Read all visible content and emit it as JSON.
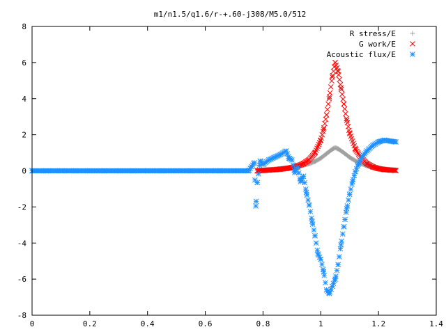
{
  "chart_data": {
    "type": "scatter",
    "title": "m1/n1.5/q1.6/r-+.60-j308/M5.0/512",
    "xlabel": "",
    "ylabel": "",
    "xlim": [
      0,
      1.4
    ],
    "ylim": [
      -8,
      8
    ],
    "xticks": [
      "0",
      "0.2",
      "0.4",
      "0.6",
      "0.8",
      "1",
      "1.2",
      "1.4"
    ],
    "yticks": [
      "-8",
      "-6",
      "-4",
      "-2",
      "0",
      "2",
      "4",
      "6",
      "8"
    ],
    "legend_position": "top-right",
    "grid": false,
    "series": [
      {
        "name": "R stress/E",
        "marker": "plus",
        "color": "#a0a0a0",
        "points": [
          [
            0.78,
            0.03
          ],
          [
            0.8,
            0.05
          ],
          [
            0.82,
            0.07
          ],
          [
            0.84,
            0.09
          ],
          [
            0.86,
            0.12
          ],
          [
            0.88,
            0.15
          ],
          [
            0.9,
            0.19
          ],
          [
            0.92,
            0.24
          ],
          [
            0.94,
            0.31
          ],
          [
            0.96,
            0.4
          ],
          [
            0.98,
            0.52
          ],
          [
            1.0,
            0.7
          ],
          [
            1.02,
            0.95
          ],
          [
            1.04,
            1.2
          ],
          [
            1.05,
            1.28
          ],
          [
            1.06,
            1.22
          ],
          [
            1.08,
            1.0
          ],
          [
            1.1,
            0.75
          ],
          [
            1.12,
            0.55
          ],
          [
            1.14,
            0.4
          ],
          [
            1.16,
            0.28
          ],
          [
            1.18,
            0.2
          ],
          [
            1.2,
            0.14
          ],
          [
            1.22,
            0.1
          ],
          [
            1.24,
            0.07
          ],
          [
            1.26,
            0.05
          ]
        ]
      },
      {
        "name": "G work/E",
        "marker": "cross",
        "color": "#ff0000",
        "points": [
          [
            0.78,
            0.0
          ],
          [
            0.8,
            0.02
          ],
          [
            0.82,
            0.04
          ],
          [
            0.84,
            0.06
          ],
          [
            0.86,
            0.09
          ],
          [
            0.88,
            0.13
          ],
          [
            0.9,
            0.18
          ],
          [
            0.92,
            0.27
          ],
          [
            0.94,
            0.4
          ],
          [
            0.96,
            0.62
          ],
          [
            0.98,
            1.0
          ],
          [
            1.0,
            1.7
          ],
          [
            1.01,
            2.3
          ],
          [
            1.02,
            3.1
          ],
          [
            1.03,
            4.1
          ],
          [
            1.04,
            5.2
          ],
          [
            1.05,
            6.0
          ],
          [
            1.06,
            5.5
          ],
          [
            1.07,
            4.6
          ],
          [
            1.08,
            3.7
          ],
          [
            1.09,
            2.8
          ],
          [
            1.1,
            2.1
          ],
          [
            1.12,
            1.2
          ],
          [
            1.14,
            0.7
          ],
          [
            1.16,
            0.4
          ],
          [
            1.18,
            0.22
          ],
          [
            1.2,
            0.12
          ],
          [
            1.22,
            0.07
          ],
          [
            1.24,
            0.04
          ],
          [
            1.26,
            0.02
          ]
        ]
      },
      {
        "name": "Acoustic flux/E",
        "marker": "star",
        "color": "#1e90ff",
        "points": [
          [
            0.0,
            0.0
          ],
          [
            0.05,
            0.0
          ],
          [
            0.1,
            0.0
          ],
          [
            0.15,
            0.0
          ],
          [
            0.2,
            0.0
          ],
          [
            0.25,
            0.0
          ],
          [
            0.3,
            0.0
          ],
          [
            0.35,
            0.0
          ],
          [
            0.4,
            0.0
          ],
          [
            0.45,
            0.0
          ],
          [
            0.5,
            0.0
          ],
          [
            0.55,
            0.0
          ],
          [
            0.6,
            0.0
          ],
          [
            0.65,
            0.0
          ],
          [
            0.7,
            0.0
          ],
          [
            0.75,
            0.0
          ],
          [
            0.77,
            0.45
          ],
          [
            0.775,
            -1.95
          ],
          [
            0.78,
            -0.65
          ],
          [
            0.79,
            0.55
          ],
          [
            0.8,
            0.35
          ],
          [
            0.82,
            0.6
          ],
          [
            0.84,
            0.75
          ],
          [
            0.86,
            0.9
          ],
          [
            0.88,
            1.1
          ],
          [
            0.89,
            0.7
          ],
          [
            0.9,
            0.6
          ],
          [
            0.91,
            -0.1
          ],
          [
            0.92,
            0.2
          ],
          [
            0.93,
            -0.6
          ],
          [
            0.94,
            -0.3
          ],
          [
            0.95,
            -1.2
          ],
          [
            0.96,
            -1.9
          ],
          [
            0.97,
            -2.8
          ],
          [
            0.98,
            -3.6
          ],
          [
            0.99,
            -4.6
          ],
          [
            1.0,
            -4.9
          ],
          [
            1.01,
            -5.6
          ],
          [
            1.02,
            -6.6
          ],
          [
            1.03,
            -6.8
          ],
          [
            1.04,
            -6.4
          ],
          [
            1.05,
            -6.0
          ],
          [
            1.06,
            -5.2
          ],
          [
            1.07,
            -4.1
          ],
          [
            1.08,
            -3.1
          ],
          [
            1.09,
            -2.1
          ],
          [
            1.1,
            -1.3
          ],
          [
            1.11,
            -0.6
          ],
          [
            1.12,
            -0.05
          ],
          [
            1.13,
            0.35
          ],
          [
            1.14,
            0.7
          ],
          [
            1.16,
            1.1
          ],
          [
            1.18,
            1.4
          ],
          [
            1.2,
            1.6
          ],
          [
            1.22,
            1.7
          ],
          [
            1.24,
            1.65
          ],
          [
            1.26,
            1.6
          ]
        ]
      }
    ]
  }
}
